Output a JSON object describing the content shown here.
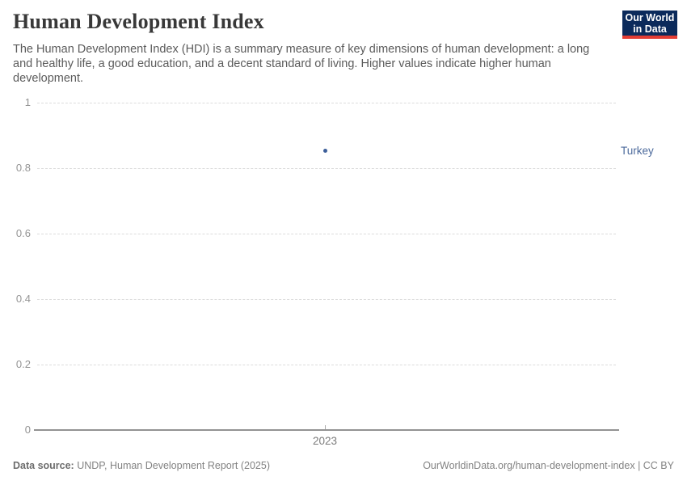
{
  "header": {
    "title": "Human Development Index",
    "subtitle": "The Human Development Index (HDI) is a summary measure of key dimensions of human development: a long and healthy life, a good education, and a decent standard of living. Higher values indicate higher human development.",
    "logo": {
      "line1": "Our World",
      "line2": "in Data"
    }
  },
  "chart_data": {
    "type": "scatter",
    "title": "Human Development Index",
    "x": [
      2023
    ],
    "xticks": [
      "2023"
    ],
    "series": [
      {
        "name": "Turkey",
        "values": [
          0.853
        ],
        "color": "#4c6a9c",
        "dot_color": "#3d5f9a"
      }
    ],
    "xlabel": "",
    "ylabel": "",
    "ylim": [
      0,
      1
    ],
    "yticks": [
      0,
      0.2,
      0.4,
      0.6,
      0.8,
      1
    ],
    "grid": "horizontal-dashed",
    "legend_position": "right-entity-label"
  },
  "footer": {
    "source_label": "Data source:",
    "source_text": " UNDP, Human Development Report (2025)",
    "link_text": "OurWorldinData.org/human-development-index | CC BY"
  },
  "colors": {
    "accent_entity": "#4c6a9c",
    "logo_navy": "#0b2a5b",
    "logo_red": "#e33d34",
    "gridline": "#dcdcdc",
    "axis": "#939393"
  }
}
